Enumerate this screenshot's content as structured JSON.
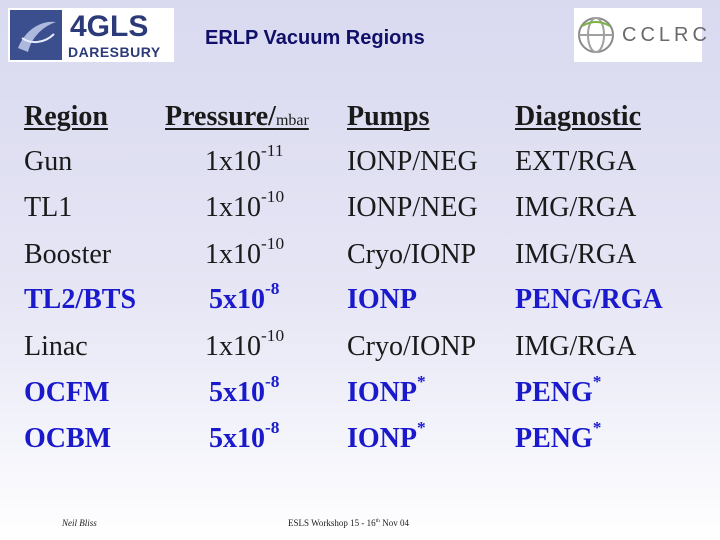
{
  "header": {
    "logo_left": "4GLS",
    "logo_left_sub": "DARESBURY",
    "title": "ERLP Vacuum Regions",
    "logo_right": "CCLRC"
  },
  "table": {
    "columns": [
      {
        "label": "Region"
      },
      {
        "label": "Pressure/",
        "unit": "mbar"
      },
      {
        "label": "Pumps"
      },
      {
        "label": "Diagnostic"
      }
    ],
    "rows": [
      {
        "region": "Gun",
        "base": "1x10",
        "exp": "-11",
        "pumps": "IONP/NEG",
        "diagnostic": "EXT/RGA",
        "highlight": false
      },
      {
        "region": "TL1",
        "base": "1x10",
        "exp": "-10",
        "pumps": "IONP/NEG",
        "diagnostic": "IMG/RGA",
        "highlight": false
      },
      {
        "region": "Booster",
        "base": "1x10",
        "exp": "-10",
        "pumps": "Cryo/IONP",
        "diagnostic": "IMG/RGA",
        "highlight": false
      },
      {
        "region": "TL2/BTS",
        "base": "5x10",
        "exp": "-8",
        "pumps": "IONP",
        "diagnostic": "PENG/RGA",
        "highlight": true
      },
      {
        "region": "Linac",
        "base": "1x10",
        "exp": "-10",
        "pumps": "Cryo/IONP",
        "diagnostic": "IMG/RGA",
        "highlight": false
      },
      {
        "region": "OCFM",
        "base": "5x10",
        "exp": "-8",
        "pumps": "IONP",
        "pumps_note": "*",
        "diagnostic": "PENG",
        "diagnostic_note": "*",
        "highlight": true
      },
      {
        "region": "OCBM",
        "base": "5x10",
        "exp": "-8",
        "pumps": "IONP",
        "pumps_note": "*",
        "diagnostic": "PENG",
        "diagnostic_note": "*",
        "highlight": true
      }
    ]
  },
  "footer": {
    "author": "Neil Bliss",
    "event": "ESLS Workshop 15 - 16",
    "event_sup": "th",
    "event_end": " Nov 04"
  }
}
